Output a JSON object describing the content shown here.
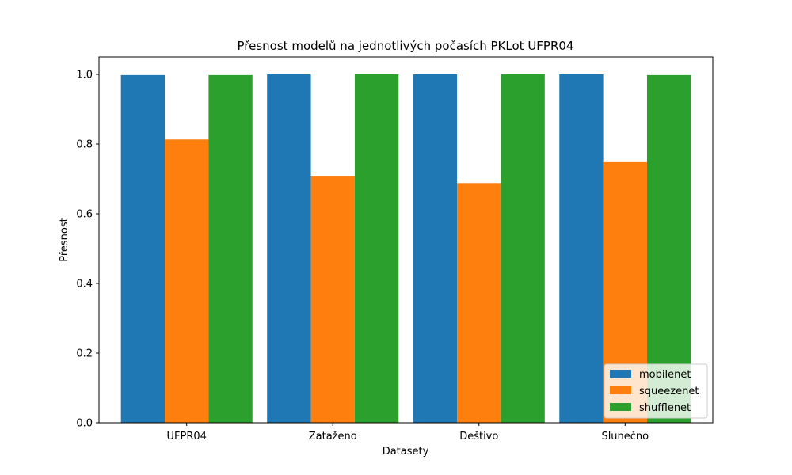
{
  "chart_data": {
    "type": "bar",
    "title": "Přesnost modelů na jednotlivých počasích PKLot UFPR04",
    "xlabel": "Datasety",
    "ylabel": "Přesnost",
    "categories": [
      "UFPR04",
      "Zataženo",
      "Deštivo",
      "Slunečno"
    ],
    "series": [
      {
        "name": "mobilenet",
        "color": "#1f77b4",
        "values": [
          0.998,
          1.0,
          1.0,
          1.0
        ]
      },
      {
        "name": "squeezenet",
        "color": "#ff7f0e",
        "values": [
          0.813,
          0.709,
          0.688,
          0.748
        ]
      },
      {
        "name": "shufflenet",
        "color": "#2ca02c",
        "values": [
          0.998,
          1.0,
          1.0,
          0.998
        ]
      }
    ],
    "ylim": [
      0,
      1.05
    ],
    "yticks": [
      "0.0",
      "0.2",
      "0.4",
      "0.6",
      "0.8",
      "1.0"
    ],
    "grid": false,
    "legend_position": "lower-right"
  }
}
